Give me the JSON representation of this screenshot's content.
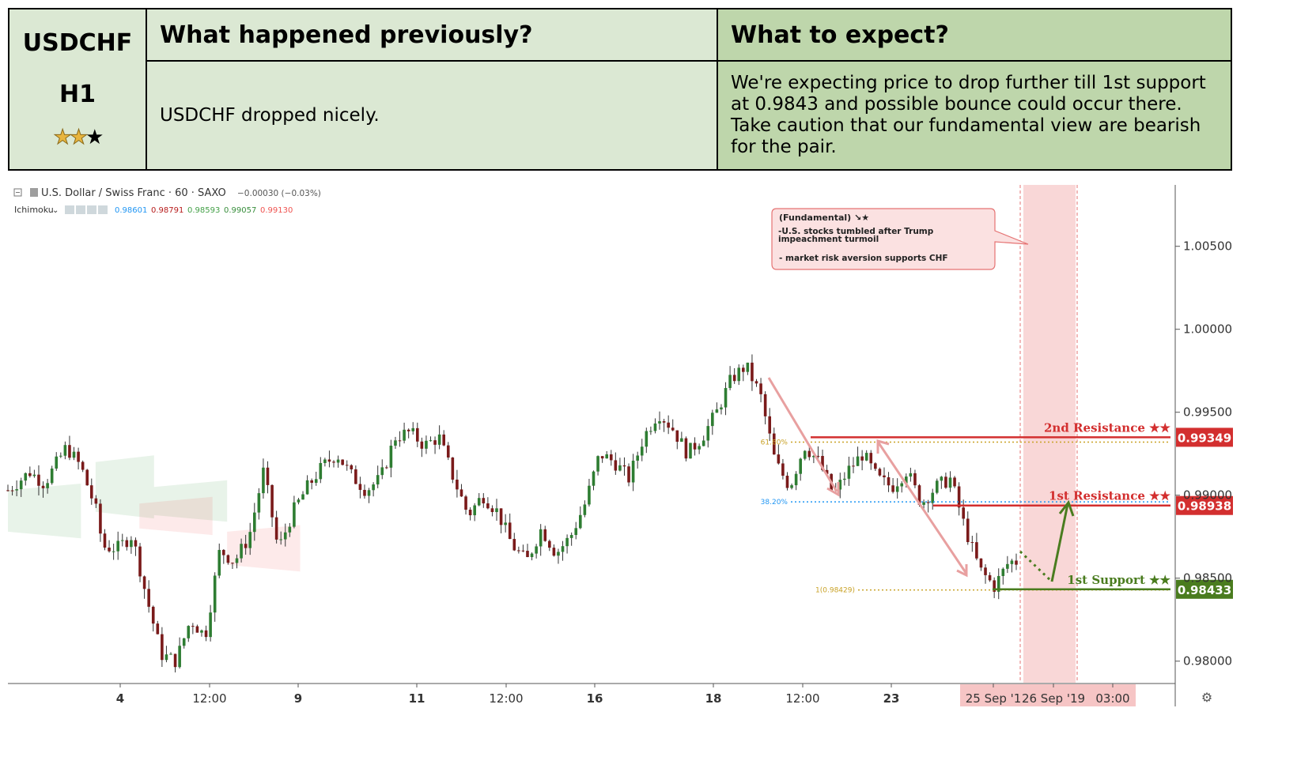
{
  "header": {
    "symbol": "USDCHF",
    "timeframe": "H1",
    "stars": {
      "filled": 2,
      "total": 3
    },
    "prev_title": "What happened previously?",
    "prev_text": "USDCHF dropped nicely.",
    "expect_title": "What to expect?",
    "expect_text": "We're expecting price to drop further till 1st support at 0.9843 and possible bounce could occur there. Take caution that our fundamental view are bearish for the pair."
  },
  "legend": {
    "instrument": "U.S. Dollar / Swiss Franc · 60 · SAXO",
    "change": "−0.00030 (−0.03%)",
    "indicator": "Ichimoku",
    "indicator_values": [
      "0.98601",
      "0.98791",
      "0.98593",
      "0.99057",
      "0.99130"
    ],
    "indicator_colors": [
      "#2196f3",
      "#b71c1c",
      "#43a047",
      "#388e3c",
      "#ef5350"
    ]
  },
  "annotation": {
    "title": "(Fundamental) ↘★",
    "line1": "-U.S. stocks tumbled after Trump impeachment turmoil",
    "line2": "- market risk aversion supports CHF"
  },
  "chart_data": {
    "type": "candlestick",
    "symbol": "USDCHF",
    "interval": "60",
    "x_ticks": [
      "4",
      "12:00",
      "9",
      "11",
      "12:00",
      "16",
      "18",
      "12:00",
      "23",
      "25 Sep '1",
      "26 Sep '19",
      "03:00"
    ],
    "y_ticks": [
      "1.00500",
      "1.00000",
      "0.99500",
      "0.99000",
      "0.98500",
      "0.98000"
    ],
    "ylim": [
      0.9787,
      1.0087
    ],
    "close_path": [
      [
        0,
        0.9903
      ],
      [
        3,
        0.9914
      ],
      [
        5,
        0.9907
      ],
      [
        8,
        0.9929
      ],
      [
        10,
        0.9917
      ],
      [
        12,
        0.9892
      ],
      [
        13,
        0.9869
      ],
      [
        15,
        0.9868
      ],
      [
        17,
        0.9876
      ],
      [
        19,
        0.9838
      ],
      [
        21,
        0.9804
      ],
      [
        23,
        0.98
      ],
      [
        25,
        0.9825
      ],
      [
        27,
        0.9815
      ],
      [
        29,
        0.9867
      ],
      [
        31,
        0.986
      ],
      [
        33,
        0.9875
      ],
      [
        35,
        0.9915
      ],
      [
        37,
        0.9867
      ],
      [
        39,
        0.989
      ],
      [
        41,
        0.9905
      ],
      [
        43,
        0.9917
      ],
      [
        45,
        0.9925
      ],
      [
        47,
        0.9912
      ],
      [
        49,
        0.9903
      ],
      [
        51,
        0.991
      ],
      [
        53,
        0.9935
      ],
      [
        55,
        0.9938
      ],
      [
        57,
        0.993
      ],
      [
        59,
        0.9935
      ],
      [
        61,
        0.991
      ],
      [
        63,
        0.9888
      ],
      [
        65,
        0.99
      ],
      [
        67,
        0.989
      ],
      [
        69,
        0.987
      ],
      [
        71,
        0.986
      ],
      [
        73,
        0.988
      ],
      [
        75,
        0.9865
      ],
      [
        77,
        0.9875
      ],
      [
        79,
        0.9895
      ],
      [
        81,
        0.9925
      ],
      [
        83,
        0.992
      ],
      [
        85,
        0.991
      ],
      [
        87,
        0.9935
      ],
      [
        89,
        0.995
      ],
      [
        91,
        0.994
      ],
      [
        93,
        0.9925
      ],
      [
        95,
        0.9935
      ],
      [
        97,
        0.995
      ],
      [
        99,
        0.997
      ],
      [
        101,
        0.9978
      ],
      [
        103,
        0.996
      ],
      [
        105,
        0.992
      ],
      [
        107,
        0.9905
      ],
      [
        109,
        0.993
      ],
      [
        111,
        0.992
      ],
      [
        113,
        0.99
      ],
      [
        115,
        0.9915
      ],
      [
        117,
        0.9925
      ],
      [
        119,
        0.991
      ],
      [
        121,
        0.9905
      ],
      [
        123,
        0.9915
      ],
      [
        125,
        0.9895
      ],
      [
        127,
        0.9905
      ],
      [
        129,
        0.991
      ],
      [
        131,
        0.988
      ],
      [
        133,
        0.9855
      ],
      [
        135,
        0.9845
      ],
      [
        137,
        0.986
      ],
      [
        138,
        0.986
      ]
    ],
    "ichimoku_cloud": [
      {
        "name": "bullish",
        "color": "#43a047",
        "spans": [
          [
            0,
            0.9878,
            0.9903
          ],
          [
            12,
            0.989,
            0.992
          ],
          [
            20,
            0.9888,
            0.9905
          ]
        ]
      },
      {
        "name": "bearish",
        "color": "#ef5350",
        "spans": [
          [
            18,
            0.988,
            0.9895
          ],
          [
            30,
            0.9858,
            0.9878
          ]
        ]
      }
    ],
    "fibonacci": [
      {
        "label": "61.80%",
        "value": 0.9932,
        "color": "#c9a227"
      },
      {
        "label": "38.20%",
        "value": 0.9896,
        "color": "#2196f3"
      },
      {
        "label": "1(0.98429)",
        "value": 0.98429,
        "color": "#c9a227"
      }
    ],
    "levels": [
      {
        "label": "2nd Resistance ★★",
        "value": 0.99349,
        "price_label": "0.99349",
        "color": "#d32f2f"
      },
      {
        "label": "1st Resistance ★★",
        "value": 0.98938,
        "price_label": "0.98938",
        "color": "#d32f2f"
      },
      {
        "label": "1st Support ★★",
        "value": 0.98433,
        "price_label": "0.98433",
        "color": "#4a7c1f"
      }
    ],
    "grid": false
  }
}
